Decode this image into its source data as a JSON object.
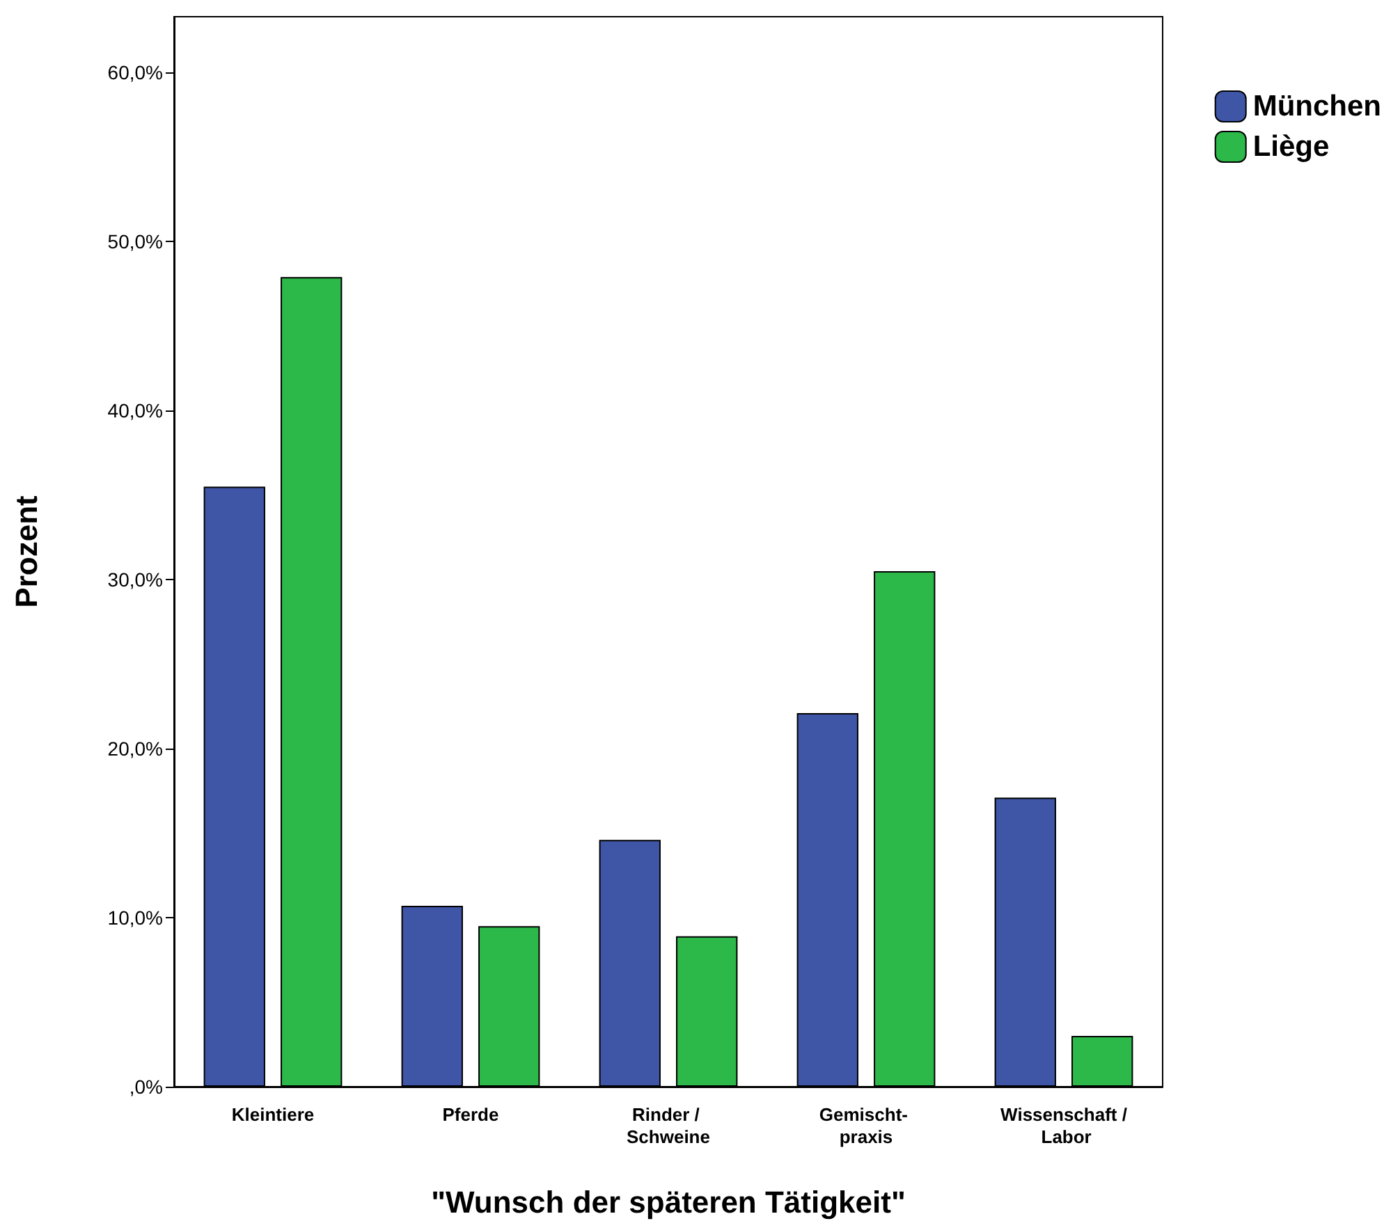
{
  "chart_data": {
    "type": "bar",
    "xlabel": "\"Wunsch der späteren Tätigkeit\"",
    "ylabel": "Prozent",
    "categories": [
      "Kleintiere",
      "Pferde",
      "Rinder / Schweine",
      "Gemischt- praxis",
      "Wissenschaft / Labor"
    ],
    "series": [
      {
        "name": "München",
        "color": "#3f56a6",
        "values": [
          35.5,
          10.7,
          14.6,
          22.1,
          17.1
        ]
      },
      {
        "name": "Liège",
        "color": "#2db84a",
        "values": [
          47.9,
          9.5,
          8.9,
          30.5,
          3.0
        ]
      }
    ],
    "ylim": [
      0,
      63.3
    ],
    "yticks": [
      {
        "value": 0,
        "label": ",0%"
      },
      {
        "value": 10,
        "label": "10,0%"
      },
      {
        "value": 20,
        "label": "20,0%"
      },
      {
        "value": 30,
        "label": "30,0%"
      },
      {
        "value": 40,
        "label": "40,0%"
      },
      {
        "value": 50,
        "label": "50,0%"
      },
      {
        "value": 60,
        "label": "60,0%"
      }
    ],
    "grid": false,
    "legend": "top right"
  }
}
